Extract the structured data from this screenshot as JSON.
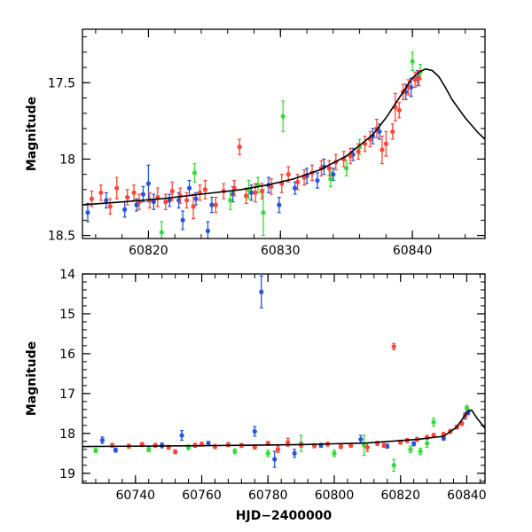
{
  "chart_data": [
    {
      "panel": "top",
      "type": "scatter",
      "ylabel": "Magnitude",
      "xlabel": "",
      "xlim": [
        60815,
        60845.5
      ],
      "ylim": [
        18.52,
        17.15
      ],
      "y_inverted": true,
      "x_ticks": [
        60820,
        60830,
        60840
      ],
      "x_tick_labels": [
        "60820",
        "60830",
        "60840"
      ],
      "y_ticks": [
        17.5,
        18,
        18.5
      ],
      "y_tick_labels": [
        "17.5",
        "18",
        "18.5"
      ],
      "series": [
        {
          "color": "#2255dd",
          "points": [
            [
              60815.4,
              18.35,
              0.06
            ],
            [
              60816.8,
              18.27,
              0.05
            ],
            [
              60818.2,
              18.33,
              0.05
            ],
            [
              60819.1,
              18.3,
              0.04
            ],
            [
              60819.6,
              18.23,
              0.05
            ],
            [
              60820.0,
              18.16,
              0.12
            ],
            [
              60820.4,
              18.28,
              0.05
            ],
            [
              60821.6,
              18.27,
              0.04
            ],
            [
              60822.3,
              18.27,
              0.05
            ],
            [
              60822.6,
              18.4,
              0.06
            ],
            [
              60823.1,
              18.19,
              0.05
            ],
            [
              60823.6,
              18.26,
              0.04
            ],
            [
              60824.5,
              18.47,
              0.06
            ],
            [
              60824.8,
              18.3,
              0.05
            ],
            [
              60826.4,
              18.23,
              0.05
            ],
            [
              60827.8,
              18.22,
              0.05
            ],
            [
              60829.1,
              18.17,
              0.05
            ],
            [
              60829.9,
              18.3,
              0.05
            ],
            [
              60831.1,
              18.19,
              0.04
            ],
            [
              60832.0,
              18.11,
              0.05
            ],
            [
              60832.8,
              18.14,
              0.05
            ],
            [
              60833.3,
              18.05,
              0.05
            ],
            [
              60834.0,
              18.1,
              0.04
            ],
            [
              60835.5,
              17.97,
              0.04
            ],
            [
              60837.0,
              17.85,
              0.05
            ],
            [
              60837.5,
              17.82,
              0.05
            ],
            [
              60839.5,
              17.56,
              0.05
            ],
            [
              60839.9,
              17.53,
              0.06
            ],
            [
              60840.4,
              17.47,
              0.05
            ]
          ]
        },
        {
          "color": "#33dd33",
          "points": [
            [
              60821.0,
              18.48,
              0.07
            ],
            [
              60823.5,
              18.09,
              0.06
            ],
            [
              60826.2,
              18.27,
              0.06
            ],
            [
              60827.6,
              18.2,
              0.06
            ],
            [
              60828.3,
              18.17,
              0.05
            ],
            [
              60828.7,
              18.35,
              0.15
            ],
            [
              60830.2,
              17.72,
              0.1
            ],
            [
              60833.8,
              18.13,
              0.05
            ],
            [
              60835.0,
              18.06,
              0.05
            ],
            [
              60836.0,
              17.92,
              0.05
            ],
            [
              60840.0,
              17.36,
              0.06
            ],
            [
              60840.6,
              17.43,
              0.05
            ]
          ]
        },
        {
          "color": "#ff4433",
          "points": [
            [
              60815.7,
              18.26,
              0.05
            ],
            [
              60816.4,
              18.22,
              0.05
            ],
            [
              60817.1,
              18.31,
              0.05
            ],
            [
              60817.6,
              18.19,
              0.07
            ],
            [
              60818.4,
              18.25,
              0.05
            ],
            [
              60818.9,
              18.22,
              0.05
            ],
            [
              60819.3,
              18.28,
              0.05
            ],
            [
              60820.1,
              18.27,
              0.05
            ],
            [
              60820.7,
              18.25,
              0.06
            ],
            [
              60821.3,
              18.28,
              0.05
            ],
            [
              60821.8,
              18.21,
              0.06
            ],
            [
              60822.4,
              18.24,
              0.05
            ],
            [
              60822.9,
              18.27,
              0.05
            ],
            [
              60823.4,
              18.31,
              0.08
            ],
            [
              60823.9,
              18.22,
              0.05
            ],
            [
              60824.3,
              18.2,
              0.06
            ],
            [
              60825.1,
              18.3,
              0.05
            ],
            [
              60825.7,
              18.21,
              0.05
            ],
            [
              60826.5,
              18.19,
              0.05
            ],
            [
              60826.9,
              17.92,
              0.05
            ],
            [
              60827.4,
              18.24,
              0.05
            ],
            [
              60828.1,
              18.22,
              0.06
            ],
            [
              60828.6,
              18.21,
              0.05
            ],
            [
              60829.3,
              18.18,
              0.05
            ],
            [
              60830.1,
              18.16,
              0.06
            ],
            [
              60830.6,
              18.1,
              0.05
            ],
            [
              60831.3,
              18.15,
              0.05
            ],
            [
              60831.8,
              18.12,
              0.05
            ],
            [
              60832.4,
              18.09,
              0.05
            ],
            [
              60833.1,
              18.06,
              0.05
            ],
            [
              60833.7,
              18.06,
              0.05
            ],
            [
              60834.2,
              18.02,
              0.05
            ],
            [
              60834.8,
              18.0,
              0.05
            ],
            [
              60835.3,
              17.98,
              0.05
            ],
            [
              60835.9,
              17.95,
              0.05
            ],
            [
              60836.4,
              17.9,
              0.05
            ],
            [
              60836.8,
              17.87,
              0.05
            ],
            [
              60837.3,
              17.8,
              0.06
            ],
            [
              60837.7,
              17.94,
              0.09
            ],
            [
              60838.0,
              17.9,
              0.08
            ],
            [
              60838.5,
              17.82,
              0.05
            ],
            [
              60838.7,
              17.66,
              0.09
            ],
            [
              60839.0,
              17.68,
              0.05
            ],
            [
              60839.3,
              17.56,
              0.05
            ],
            [
              60839.7,
              17.53,
              0.05
            ],
            [
              60840.2,
              17.48,
              0.05
            ],
            [
              60840.5,
              17.47,
              0.05
            ]
          ]
        }
      ],
      "model_curve": {
        "color": "#000000",
        "x": [
          60815,
          60818,
          60821,
          60824,
          60827,
          60829,
          60831,
          60833,
          60835,
          60837,
          60838,
          60839,
          60840,
          60840.5,
          60841,
          60841.5,
          60842,
          60842.5,
          60843,
          60843.5,
          60844,
          60844.5,
          60845,
          60845.5
        ],
        "y": [
          18.3,
          18.28,
          18.26,
          18.23,
          18.2,
          18.17,
          18.13,
          18.07,
          17.98,
          17.84,
          17.73,
          17.6,
          17.47,
          17.43,
          17.41,
          17.42,
          17.46,
          17.53,
          17.61,
          17.67,
          17.73,
          17.78,
          17.83,
          17.87
        ]
      }
    },
    {
      "panel": "bottom",
      "type": "scatter",
      "ylabel": "Magnitude",
      "xlabel": "HJD−2400000",
      "xlim": [
        60724,
        60845.5
      ],
      "ylim": [
        19.25,
        14
      ],
      "y_inverted": true,
      "x_ticks": [
        60740,
        60760,
        60780,
        60800,
        60820,
        60840
      ],
      "x_tick_labels": [
        "60740",
        "60760",
        "60780",
        "60800",
        "60820",
        "60840"
      ],
      "y_ticks": [
        14,
        15,
        16,
        17,
        18,
        19
      ],
      "y_tick_labels": [
        "14",
        "15",
        "16",
        "17",
        "18",
        "19"
      ],
      "series": [
        {
          "color": "#2255dd",
          "points": [
            [
              60730,
              18.17,
              0.08
            ],
            [
              60734,
              18.42,
              0.05
            ],
            [
              60748,
              18.3,
              0.06
            ],
            [
              60754,
              18.05,
              0.12
            ],
            [
              60762,
              18.25,
              0.05
            ],
            [
              60776,
              17.95,
              0.12
            ],
            [
              60778,
              14.45,
              0.4
            ],
            [
              60782,
              18.65,
              0.2
            ],
            [
              60788,
              18.5,
              0.1
            ],
            [
              60796,
              18.3,
              0.05
            ],
            [
              60808,
              18.15,
              0.1
            ],
            [
              60816,
              18.32,
              0.05
            ],
            [
              60824,
              18.26,
              0.05
            ],
            [
              60833,
              18.12,
              0.05
            ],
            [
              60839.5,
              17.56,
              0.08
            ],
            [
              60840.4,
              17.47,
              0.06
            ]
          ]
        },
        {
          "color": "#33dd33",
          "points": [
            [
              60728,
              18.43,
              0.05
            ],
            [
              60744,
              18.4,
              0.06
            ],
            [
              60756,
              18.35,
              0.06
            ],
            [
              60770,
              18.45,
              0.06
            ],
            [
              60780,
              18.5,
              0.08
            ],
            [
              60790,
              18.25,
              0.2
            ],
            [
              60800,
              18.5,
              0.08
            ],
            [
              60809,
              18.3,
              0.25
            ],
            [
              60818,
              18.8,
              0.15
            ],
            [
              60823,
              18.4,
              0.08
            ],
            [
              60826,
              18.45,
              0.08
            ],
            [
              60828,
              18.25,
              0.1
            ],
            [
              60830,
              17.72,
              0.1
            ],
            [
              60840,
              17.36,
              0.06
            ]
          ]
        },
        {
          "color": "#ff4433",
          "points": [
            [
              60733,
              18.3,
              0.05
            ],
            [
              60738,
              18.32,
              0.05
            ],
            [
              60742,
              18.28,
              0.05
            ],
            [
              60746,
              18.3,
              0.05
            ],
            [
              60750,
              18.35,
              0.05
            ],
            [
              60752,
              18.46,
              0.05
            ],
            [
              60758,
              18.3,
              0.05
            ],
            [
              60760,
              18.27,
              0.05
            ],
            [
              60764,
              18.33,
              0.05
            ],
            [
              60768,
              18.28,
              0.05
            ],
            [
              60772,
              18.3,
              0.05
            ],
            [
              60776,
              18.34,
              0.05
            ],
            [
              60780,
              18.25,
              0.05
            ],
            [
              60783,
              18.4,
              0.08
            ],
            [
              60786,
              18.22,
              0.1
            ],
            [
              60790,
              18.29,
              0.05
            ],
            [
              60794,
              18.31,
              0.05
            ],
            [
              60798,
              18.27,
              0.05
            ],
            [
              60802,
              18.33,
              0.05
            ],
            [
              60805,
              18.3,
              0.05
            ],
            [
              60810,
              18.35,
              0.1
            ],
            [
              60813,
              18.25,
              0.05
            ],
            [
              60815,
              18.3,
              0.05
            ],
            [
              60818,
              15.82,
              0.08
            ],
            [
              60820,
              18.22,
              0.05
            ],
            [
              60822,
              18.18,
              0.05
            ],
            [
              60825,
              18.15,
              0.05
            ],
            [
              60828,
              18.1,
              0.05
            ],
            [
              60830,
              18.05,
              0.05
            ],
            [
              60833,
              18.02,
              0.05
            ],
            [
              60835,
              17.95,
              0.05
            ],
            [
              60837,
              17.84,
              0.05
            ],
            [
              60838.5,
              17.75,
              0.05
            ],
            [
              60839.5,
              17.55,
              0.05
            ]
          ]
        }
      ],
      "model_curve": {
        "color": "#000000",
        "x": [
          60724,
          60760,
          60790,
          60810,
          60825,
          60833,
          60837,
          60839,
          60840.5,
          60841.5,
          60843,
          60845.5
        ],
        "y": [
          18.33,
          18.31,
          18.28,
          18.24,
          18.15,
          18.07,
          17.84,
          17.6,
          17.43,
          17.42,
          17.61,
          17.87
        ]
      }
    }
  ]
}
